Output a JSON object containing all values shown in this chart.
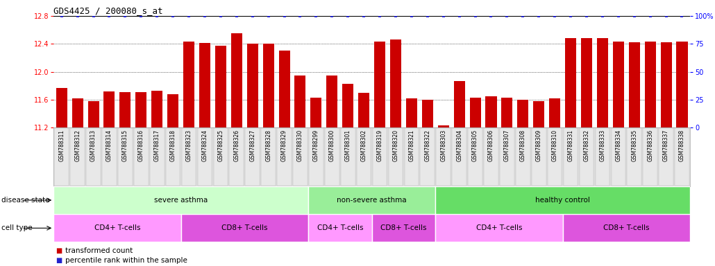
{
  "title": "GDS4425 / 200080_s_at",
  "samples": [
    "GSM788311",
    "GSM788312",
    "GSM788313",
    "GSM788314",
    "GSM788315",
    "GSM788316",
    "GSM788317",
    "GSM788318",
    "GSM788323",
    "GSM788324",
    "GSM788325",
    "GSM788326",
    "GSM788327",
    "GSM788328",
    "GSM788329",
    "GSM788330",
    "GSM788299",
    "GSM788300",
    "GSM788301",
    "GSM788302",
    "GSM788319",
    "GSM788320",
    "GSM788321",
    "GSM788322",
    "GSM788303",
    "GSM788304",
    "GSM788305",
    "GSM788306",
    "GSM788307",
    "GSM788308",
    "GSM788309",
    "GSM788310",
    "GSM788331",
    "GSM788332",
    "GSM788333",
    "GSM788334",
    "GSM788335",
    "GSM788336",
    "GSM788337",
    "GSM788338"
  ],
  "values": [
    11.77,
    11.62,
    11.58,
    11.72,
    11.71,
    11.71,
    11.73,
    11.68,
    12.43,
    12.41,
    12.37,
    12.55,
    12.4,
    12.4,
    12.3,
    11.95,
    11.63,
    11.95,
    11.83,
    11.7,
    12.43,
    12.46,
    11.62,
    11.6,
    11.23,
    11.87,
    11.63,
    11.65,
    11.63,
    11.6,
    11.58,
    11.62,
    12.48,
    12.48,
    12.48,
    12.43,
    12.42,
    12.43,
    12.42,
    12.43
  ],
  "percentile_values": [
    100,
    100,
    100,
    100,
    100,
    100,
    100,
    100,
    100,
    100,
    100,
    100,
    100,
    100,
    100,
    100,
    100,
    100,
    100,
    100,
    100,
    100,
    100,
    100,
    100,
    100,
    100,
    100,
    100,
    100,
    100,
    100,
    100,
    100,
    100,
    100,
    100,
    100,
    100,
    100
  ],
  "bar_color": "#cc0000",
  "dot_color": "#2222cc",
  "ylim_left": [
    11.2,
    12.8
  ],
  "ylim_right": [
    0,
    100
  ],
  "yticks_left": [
    11.2,
    11.6,
    12.0,
    12.4,
    12.8
  ],
  "yticks_right": [
    0,
    25,
    50,
    75,
    100
  ],
  "disease_state_groups": [
    {
      "label": "severe asthma",
      "start": 0,
      "end": 16,
      "color": "#ccffcc"
    },
    {
      "label": "non-severe asthma",
      "start": 16,
      "end": 24,
      "color": "#99ee99"
    },
    {
      "label": "healthy control",
      "start": 24,
      "end": 40,
      "color": "#66dd66"
    }
  ],
  "cell_type_groups": [
    {
      "label": "CD4+ T-cells",
      "start": 0,
      "end": 8,
      "color": "#ff99ff"
    },
    {
      "label": "CD8+ T-cells",
      "start": 8,
      "end": 16,
      "color": "#dd55dd"
    },
    {
      "label": "CD4+ T-cells",
      "start": 16,
      "end": 20,
      "color": "#ff99ff"
    },
    {
      "label": "CD8+ T-cells",
      "start": 20,
      "end": 24,
      "color": "#dd55dd"
    },
    {
      "label": "CD4+ T-cells",
      "start": 24,
      "end": 32,
      "color": "#ff99ff"
    },
    {
      "label": "CD8+ T-cells",
      "start": 32,
      "end": 40,
      "color": "#dd55dd"
    }
  ],
  "background_color": "#ffffff",
  "title_fontsize": 9,
  "tick_fontsize": 7,
  "label_fontsize": 7.5,
  "annotation_fontsize": 7.5,
  "sample_fontsize": 5.5
}
